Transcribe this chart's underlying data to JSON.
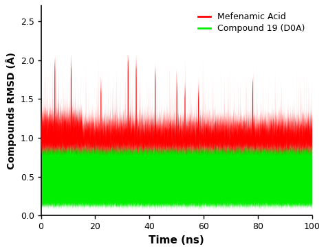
{
  "title": "",
  "xlabel": "Time (ns)",
  "ylabel": "Compounds RMSD (Å)",
  "xlim": [
    0,
    100
  ],
  "ylim": [
    0.0,
    2.7
  ],
  "yticks": [
    0.0,
    0.5,
    1.0,
    1.5,
    2.0,
    2.5
  ],
  "xticks": [
    0,
    20,
    40,
    60,
    80,
    100
  ],
  "red_label": "Mefenamic Acid",
  "green_label": "Compound 19 (D0A)",
  "red_color": "#ff0000",
  "green_color": "#00ee00",
  "background_color": "#ffffff",
  "n_points": 10000,
  "seed": 42,
  "xlabel_fontsize": 11,
  "ylabel_fontsize": 10,
  "tick_fontsize": 9,
  "legend_fontsize": 9
}
